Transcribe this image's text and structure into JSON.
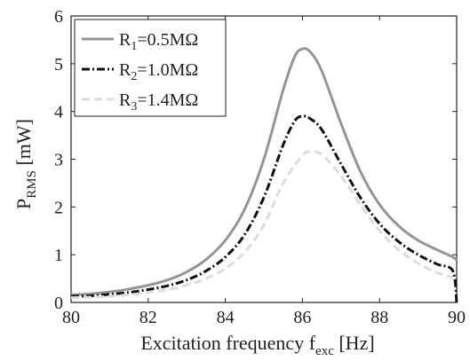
{
  "chart_data": {
    "type": "line",
    "title": "",
    "xlabel": {
      "main": "Excitation frequency f",
      "sub": "exc",
      "unit": " [Hz]"
    },
    "ylabel": {
      "main": "P",
      "sub": "RMS",
      "unit": " [mW]"
    },
    "xlim": [
      80,
      90
    ],
    "ylim": [
      0,
      6
    ],
    "xticks": [
      80,
      82,
      84,
      86,
      88,
      90
    ],
    "yticks": [
      0,
      1,
      2,
      3,
      4,
      5,
      6
    ],
    "grid": false,
    "legend_position": "top-left",
    "series": [
      {
        "label": {
          "main": "R",
          "sub": "1",
          "rest": "=0.5MΩ"
        },
        "color": "#959595",
        "dash": "solid",
        "x": [
          80,
          80.5,
          81,
          81.5,
          82,
          82.5,
          83,
          83.5,
          84,
          84.5,
          85,
          85.5,
          85.8,
          86,
          86.2,
          86.5,
          87,
          87.5,
          88,
          88.5,
          89,
          89.5,
          89.9,
          90
        ],
        "y": [
          0.16,
          0.18,
          0.22,
          0.28,
          0.36,
          0.47,
          0.64,
          0.9,
          1.3,
          1.95,
          3.0,
          4.45,
          5.15,
          5.31,
          5.25,
          4.85,
          3.75,
          2.75,
          2.05,
          1.6,
          1.3,
          1.1,
          0.95,
          0.88
        ]
      },
      {
        "label": {
          "main": "R",
          "sub": "2",
          "rest": "=1.0MΩ"
        },
        "color": "#111111",
        "dash": "dashdot",
        "x": [
          80,
          80.5,
          81,
          81.5,
          82,
          82.5,
          83,
          83.5,
          84,
          84.5,
          85,
          85.5,
          85.8,
          86,
          86.2,
          86.5,
          87,
          87.5,
          88,
          88.5,
          89,
          89.5,
          89.9,
          90
        ],
        "y": [
          0.13,
          0.14,
          0.17,
          0.21,
          0.27,
          0.35,
          0.47,
          0.66,
          0.95,
          1.42,
          2.2,
          3.3,
          3.8,
          3.9,
          3.85,
          3.62,
          2.9,
          2.2,
          1.65,
          1.27,
          1.0,
          0.8,
          0.66,
          0.0
        ]
      },
      {
        "label": {
          "main": "R",
          "sub": "3",
          "rest": "=1.4MΩ"
        },
        "color": "#dcdcdc",
        "dash": "dashed",
        "x": [
          80,
          80.5,
          81,
          81.5,
          82,
          82.5,
          83,
          83.5,
          84,
          84.5,
          85,
          85.5,
          86,
          86.2,
          86.5,
          87,
          87.5,
          88,
          88.5,
          89,
          89.5,
          89.9
        ],
        "y": [
          0.1,
          0.11,
          0.13,
          0.16,
          0.21,
          0.27,
          0.36,
          0.5,
          0.71,
          1.05,
          1.62,
          2.5,
          3.08,
          3.15,
          3.1,
          2.65,
          2.05,
          1.5,
          1.1,
          0.82,
          0.62,
          0.52
        ]
      }
    ]
  }
}
